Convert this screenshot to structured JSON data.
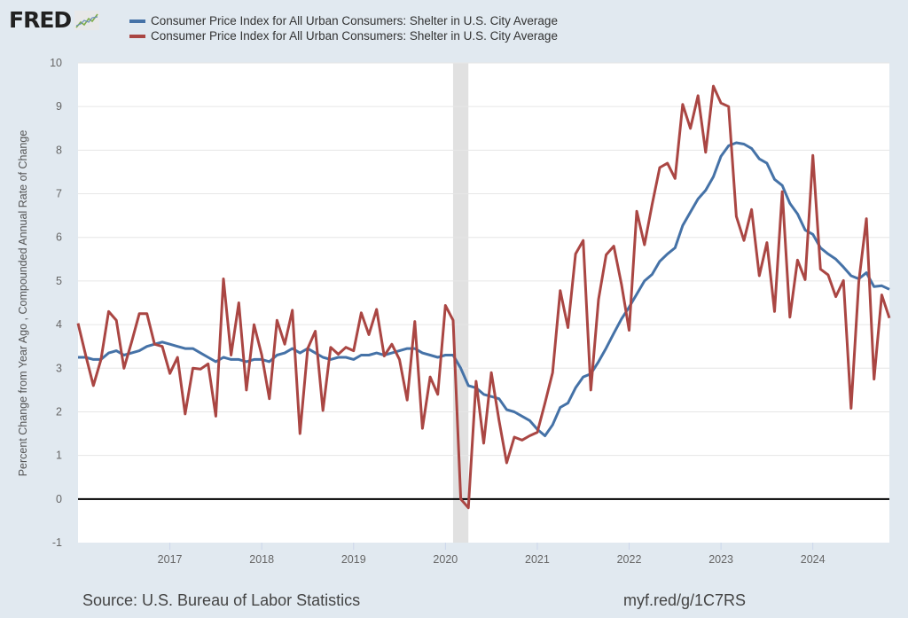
{
  "logo": {
    "text": "FRED",
    "icon": "line-graph-icon"
  },
  "chart_data": {
    "type": "line",
    "title": "",
    "xlabel": "",
    "ylabel": "Percent Change from Year Ago , Compounded Annual Rate of Change",
    "ylim": [
      -1,
      10
    ],
    "xlim": [
      "2016-01",
      "2024-11"
    ],
    "yticks": [
      "-1",
      "0",
      "1",
      "2",
      "3",
      "4",
      "5",
      "6",
      "7",
      "8",
      "9",
      "10"
    ],
    "xticks": [
      "2017",
      "2018",
      "2019",
      "2020",
      "2021",
      "2022",
      "2023",
      "2024"
    ],
    "grid": true,
    "legend_position": "top",
    "recession": {
      "start": "2020-02",
      "end": "2020-04"
    },
    "x_start": "2016-01",
    "x_frequency": "monthly",
    "series": [
      {
        "name": "Consumer Price Index for All Urban Consumers: Shelter in U.S. City Average",
        "color": "#4572a7",
        "values": [
          3.25,
          3.25,
          3.2,
          3.2,
          3.35,
          3.4,
          3.3,
          3.35,
          3.4,
          3.5,
          3.55,
          3.6,
          3.55,
          3.5,
          3.45,
          3.45,
          3.35,
          3.25,
          3.15,
          3.25,
          3.2,
          3.2,
          3.15,
          3.2,
          3.2,
          3.15,
          3.3,
          3.35,
          3.45,
          3.35,
          3.45,
          3.35,
          3.25,
          3.2,
          3.25,
          3.25,
          3.2,
          3.3,
          3.3,
          3.35,
          3.3,
          3.35,
          3.4,
          3.45,
          3.45,
          3.35,
          3.3,
          3.25,
          3.3,
          3.3,
          3.0,
          2.6,
          2.55,
          2.4,
          2.35,
          2.3,
          2.05,
          2.0,
          1.9,
          1.8,
          1.6,
          1.45,
          1.7,
          2.1,
          2.2,
          2.55,
          2.8,
          2.87,
          3.15,
          3.46,
          3.8,
          4.13,
          4.4,
          4.7,
          5.0,
          5.15,
          5.45,
          5.62,
          5.76,
          6.27,
          6.58,
          6.88,
          7.08,
          7.39,
          7.86,
          8.1,
          8.17,
          8.14,
          8.04,
          7.8,
          7.7,
          7.33,
          7.19,
          6.78,
          6.54,
          6.17,
          6.07,
          5.76,
          5.62,
          5.5,
          5.32,
          5.12,
          5.05,
          5.19,
          4.87,
          4.89,
          4.81
        ]
      },
      {
        "name": "Consumer Price Index for All Urban Consumers: Shelter in U.S. City Average",
        "color": "#aa4643",
        "values": [
          4.03,
          3.3,
          2.6,
          3.2,
          4.3,
          4.1,
          3.0,
          3.6,
          4.25,
          4.25,
          3.55,
          3.5,
          2.88,
          3.25,
          1.95,
          3.0,
          2.98,
          3.1,
          1.9,
          5.05,
          3.3,
          4.5,
          2.5,
          4.0,
          3.3,
          2.3,
          4.1,
          3.55,
          4.33,
          1.5,
          3.45,
          3.85,
          2.03,
          3.48,
          3.32,
          3.48,
          3.4,
          4.27,
          3.77,
          4.35,
          3.28,
          3.55,
          3.2,
          2.27,
          4.07,
          1.62,
          2.8,
          2.4,
          4.44,
          4.1,
          0.0,
          -0.2,
          2.7,
          1.28,
          2.9,
          1.8,
          0.83,
          1.42,
          1.35,
          1.45,
          1.53,
          2.2,
          2.9,
          4.78,
          3.93,
          5.62,
          5.93,
          2.5,
          4.58,
          5.6,
          5.8,
          4.92,
          3.87,
          6.6,
          5.83,
          6.75,
          7.6,
          7.7,
          7.35,
          9.05,
          8.5,
          9.25,
          7.95,
          9.47,
          9.08,
          9.0,
          6.48,
          5.93,
          6.64,
          5.12,
          5.88,
          4.3,
          7.05,
          4.17,
          5.48,
          5.03,
          7.88,
          5.27,
          5.14,
          4.64,
          5.01,
          2.08,
          4.98,
          6.43,
          2.75,
          4.68,
          4.15
        ]
      }
    ]
  },
  "footer": {
    "source": "Source: U.S. Bureau of Labor Statistics",
    "link": "myf.red/g/1C7RS"
  }
}
